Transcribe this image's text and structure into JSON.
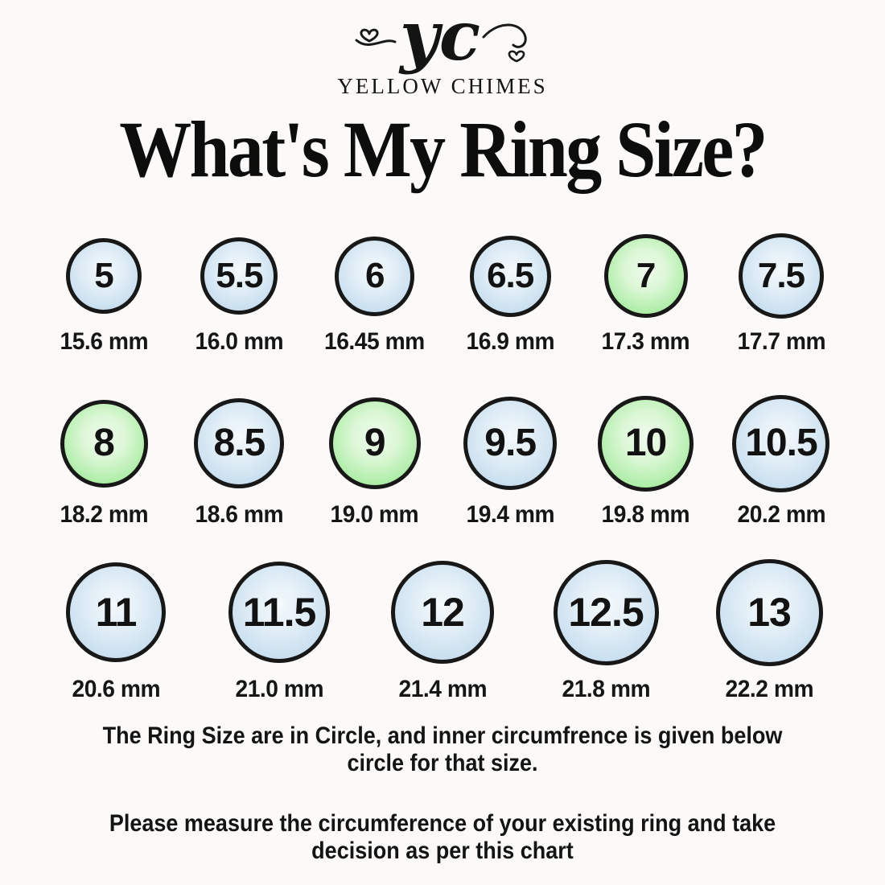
{
  "brand": {
    "monogram": "yc",
    "name": "YELLOW CHIMES"
  },
  "title": "What's My Ring Size?",
  "colors": {
    "outline": "#181818",
    "number_text": "#121212",
    "blue_fill": "#c4dcee",
    "green_fill": "#8ee489",
    "background": "#fbfaf8"
  },
  "chart": {
    "rows": [
      {
        "items": [
          {
            "size": "5",
            "circumference": "15.6 mm",
            "mm": 15.6,
            "highlight": false
          },
          {
            "size": "5.5",
            "circumference": "16.0 mm",
            "mm": 16.0,
            "highlight": false
          },
          {
            "size": "6",
            "circumference": "16.45 mm",
            "mm": 16.45,
            "highlight": false
          },
          {
            "size": "6.5",
            "circumference": "16.9 mm",
            "mm": 16.9,
            "highlight": false
          },
          {
            "size": "7",
            "circumference": "17.3 mm",
            "mm": 17.3,
            "highlight": true
          },
          {
            "size": "7.5",
            "circumference": "17.7 mm",
            "mm": 17.7,
            "highlight": false
          }
        ]
      },
      {
        "items": [
          {
            "size": "8",
            "circumference": "18.2 mm",
            "mm": 18.2,
            "highlight": true
          },
          {
            "size": "8.5",
            "circumference": "18.6 mm",
            "mm": 18.6,
            "highlight": false
          },
          {
            "size": "9",
            "circumference": "19.0 mm",
            "mm": 19.0,
            "highlight": true
          },
          {
            "size": "9.5",
            "circumference": "19.4 mm",
            "mm": 19.4,
            "highlight": false
          },
          {
            "size": "10",
            "circumference": "19.8 mm",
            "mm": 19.8,
            "highlight": true
          },
          {
            "size": "10.5",
            "circumference": "20.2 mm",
            "mm": 20.2,
            "highlight": false
          }
        ]
      },
      {
        "items": [
          {
            "size": "11",
            "circumference": "20.6 mm",
            "mm": 20.6,
            "highlight": false
          },
          {
            "size": "11.5",
            "circumference": "21.0 mm",
            "mm": 21.0,
            "highlight": false
          },
          {
            "size": "12",
            "circumference": "21.4 mm",
            "mm": 21.4,
            "highlight": false
          },
          {
            "size": "12.5",
            "circumference": "21.8 mm",
            "mm": 21.8,
            "highlight": false
          },
          {
            "size": "13",
            "circumference": "22.2 mm",
            "mm": 22.2,
            "highlight": false
          }
        ]
      }
    ]
  },
  "notes": {
    "circle_explanation": [
      "The Ring Size are in Circle, and inner circumfrence is  given below",
      "circle for that size."
    ],
    "measure_instruction": [
      "Please measure the circumference of your existing ring and take",
      "decision as per this chart"
    ]
  }
}
